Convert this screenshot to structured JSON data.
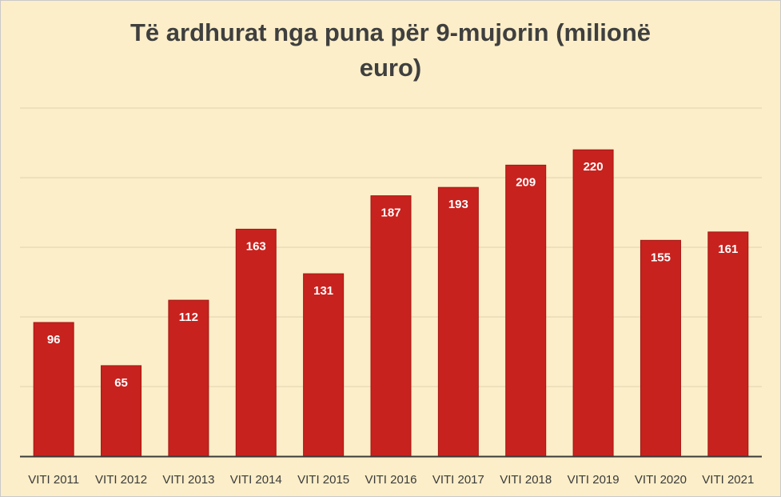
{
  "colors": {
    "background": "#fbeec8",
    "bar": "#c8221e",
    "bar_edge": "#a31512",
    "grid": "#e0d3b0",
    "axis": "#3a3a3a"
  },
  "chart_data": {
    "type": "bar",
    "title_lines": [
      "Të ardhurat nga puna për 9-mujorin (milionë",
      "euro)"
    ],
    "categories": [
      "VITI 2011",
      "VITI 2012",
      "VITI 2013",
      "VITI 2014",
      "VITI 2015",
      "VITI 2016",
      "VITI 2017",
      "VITI 2018",
      "VITI 2019",
      "VITI 2020",
      "VITI 2021"
    ],
    "values": [
      96,
      65,
      112,
      163,
      131,
      187,
      193,
      209,
      220,
      155,
      161
    ],
    "xlabel": "",
    "ylabel": "",
    "ylim": [
      0,
      250
    ],
    "grid": true,
    "legend": "none",
    "data_labels": "inside-top"
  }
}
